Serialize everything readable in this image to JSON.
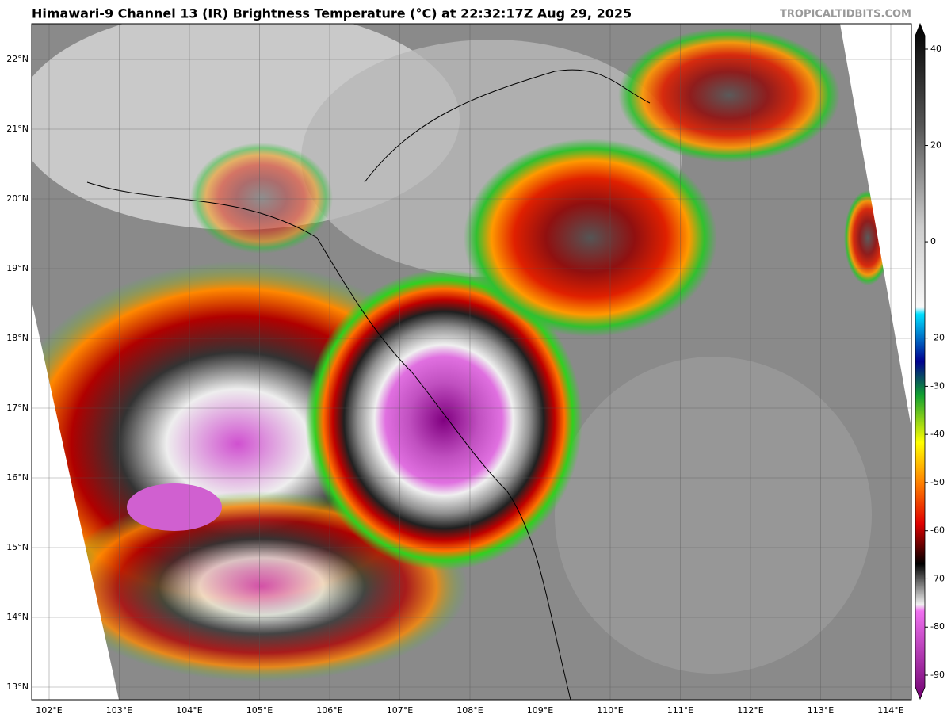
{
  "map": {
    "title": "Himawari-9 Channel 13 (IR) Brightness Temperature (°C) at 22:32:17Z Aug 29, 2025",
    "credit": "TROPICALTIDBITS.COM",
    "lat_labels": [
      "22°N",
      "21°N",
      "20°N",
      "19°N",
      "18°N",
      "17°N",
      "16°N",
      "15°N",
      "14°N",
      "13°N"
    ],
    "lon_labels": [
      "102°E",
      "103°E",
      "104°E",
      "105°E",
      "106°E",
      "107°E",
      "108°E",
      "109°E",
      "110°E",
      "111°E",
      "112°E",
      "113°E",
      "114°E"
    ],
    "colorbar": {
      "ticks": [
        40,
        20,
        0,
        -20,
        -30,
        -40,
        -50,
        -60,
        -70,
        -80,
        -90
      ],
      "range": [
        40,
        -90
      ]
    }
  }
}
